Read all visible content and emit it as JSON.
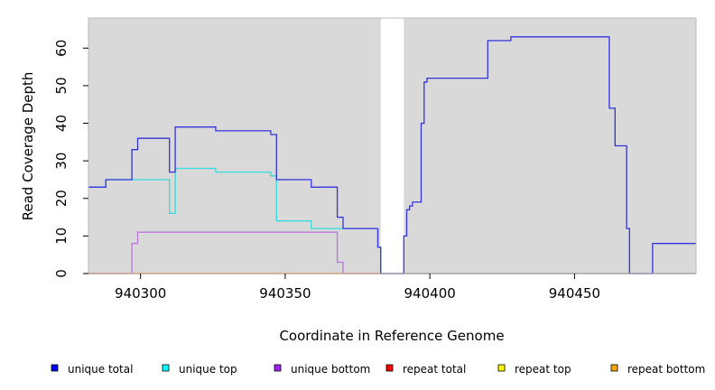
{
  "chart_data": {
    "type": "line",
    "title": "",
    "xlabel": "Coordinate in Reference Genome",
    "ylabel": "Read Coverage Depth",
    "xlim": [
      940282,
      940492
    ],
    "ylim": [
      0,
      68
    ],
    "x_ticks": [
      940300,
      940350,
      940400,
      940450
    ],
    "y_ticks": [
      0,
      10,
      20,
      30,
      40,
      50,
      60
    ],
    "grid": false,
    "background": "#d9d9d9",
    "gap": [
      940383,
      940391
    ],
    "legend_position": "bottom",
    "series": [
      {
        "name": "unique total",
        "color": "#0000ff",
        "draw_color": "#3333dd",
        "points": [
          [
            940282,
            23
          ],
          [
            940288,
            25
          ],
          [
            940297,
            33
          ],
          [
            940299,
            36
          ],
          [
            940310,
            27
          ],
          [
            940312,
            39
          ],
          [
            940326,
            38
          ],
          [
            940345,
            37
          ],
          [
            940347,
            25
          ],
          [
            940359,
            23
          ],
          [
            940368,
            15
          ],
          [
            940370,
            12
          ],
          [
            940382,
            7
          ],
          [
            940383,
            0
          ],
          [
            940390,
            0
          ],
          [
            940391,
            10
          ],
          [
            940392,
            17
          ],
          [
            940393,
            18
          ],
          [
            940394,
            19
          ],
          [
            940397,
            40
          ],
          [
            940398,
            51
          ],
          [
            940399,
            52
          ],
          [
            940420,
            62
          ],
          [
            940428,
            63
          ],
          [
            940462,
            44
          ],
          [
            940464,
            34
          ],
          [
            940468,
            12
          ],
          [
            940469,
            0
          ],
          [
            940477,
            8
          ],
          [
            940492,
            8
          ]
        ]
      },
      {
        "name": "unique top",
        "color": "#00ffff",
        "draw_color": "#33dddd",
        "points": [
          [
            940282,
            23
          ],
          [
            940288,
            25
          ],
          [
            940297,
            25
          ],
          [
            940310,
            16
          ],
          [
            940312,
            28
          ],
          [
            940326,
            27
          ],
          [
            940345,
            26
          ],
          [
            940347,
            14
          ],
          [
            940359,
            12
          ],
          [
            940370,
            12
          ],
          [
            940382,
            7
          ],
          [
            940383,
            0
          ],
          [
            940492,
            0
          ]
        ]
      },
      {
        "name": "unique bottom",
        "color": "#a020f0",
        "draw_color": "#bb77dd",
        "points": [
          [
            940282,
            0
          ],
          [
            940297,
            8
          ],
          [
            940299,
            11
          ],
          [
            940368,
            3
          ],
          [
            940370,
            0
          ],
          [
            940492,
            0
          ]
        ]
      },
      {
        "name": "repeat total",
        "color": "#ff0000",
        "draw_color": "#dd4444",
        "points": [
          [
            940282,
            0
          ],
          [
            940492,
            0
          ]
        ]
      },
      {
        "name": "repeat top",
        "color": "#ffff00",
        "draw_color": "#dddd22",
        "points": [
          [
            940282,
            0
          ],
          [
            940492,
            0
          ]
        ]
      },
      {
        "name": "repeat bottom",
        "color": "#ffa500",
        "draw_color": "#ee9900",
        "points": [
          [
            940282,
            0
          ],
          [
            940492,
            0
          ]
        ]
      }
    ]
  }
}
